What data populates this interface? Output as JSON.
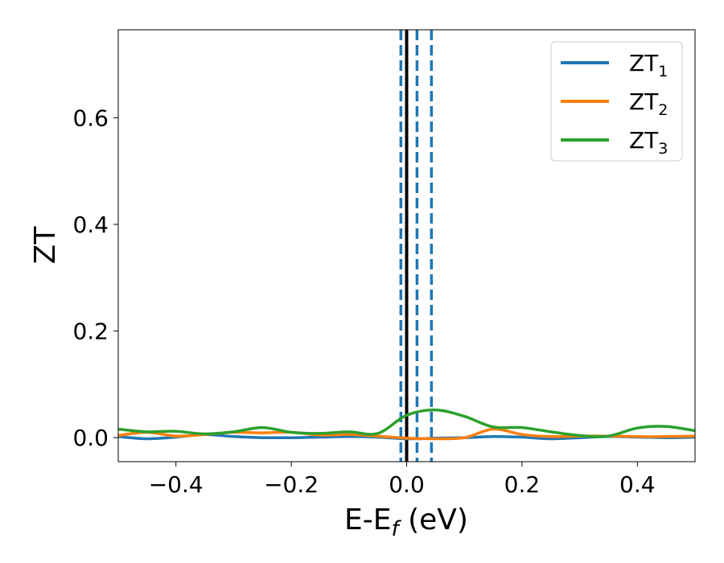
{
  "chart_data": {
    "type": "line",
    "xlabel": {
      "main": "E-E",
      "sub": "f",
      "suffix": " (eV)"
    },
    "ylabel": "ZT",
    "xlim": [
      -0.5,
      0.5
    ],
    "ylim": [
      -0.045,
      0.765
    ],
    "x_ticks": [
      -0.4,
      -0.2,
      0.0,
      0.2,
      0.4
    ],
    "x_tick_labels": [
      "−0.4",
      "−0.2",
      "0.0",
      "0.2",
      "0.4"
    ],
    "y_ticks": [
      0.0,
      0.2,
      0.4,
      0.6
    ],
    "y_tick_labels": [
      "0.0",
      "0.2",
      "0.4",
      "0.6"
    ],
    "grid": false,
    "legend_position": "top-right",
    "series": [
      {
        "name": "ZT",
        "sub": "1",
        "color": "#1f77b4",
        "points": [
          [
            -0.5,
            0.002
          ],
          [
            -0.45,
            -0.002
          ],
          [
            -0.4,
            0.001
          ],
          [
            -0.35,
            0.006
          ],
          [
            -0.3,
            0.002
          ],
          [
            -0.25,
            0.0
          ],
          [
            -0.2,
            0.0
          ],
          [
            -0.15,
            0.001
          ],
          [
            -0.1,
            0.002
          ],
          [
            -0.05,
            0.001
          ],
          [
            0.0,
            -0.002
          ],
          [
            0.05,
            -0.001
          ],
          [
            0.1,
            0.0
          ],
          [
            0.15,
            0.002
          ],
          [
            0.2,
            0.001
          ],
          [
            0.25,
            -0.002
          ],
          [
            0.3,
            0.0
          ],
          [
            0.35,
            0.002
          ],
          [
            0.4,
            0.001
          ],
          [
            0.45,
            0.0
          ],
          [
            0.5,
            0.001
          ]
        ]
      },
      {
        "name": "ZT",
        "sub": "2",
        "color": "#ff7f0e",
        "points": [
          [
            -0.5,
            0.004
          ],
          [
            -0.45,
            0.01
          ],
          [
            -0.4,
            0.003
          ],
          [
            -0.35,
            0.006
          ],
          [
            -0.3,
            0.01
          ],
          [
            -0.25,
            0.009
          ],
          [
            -0.2,
            0.01
          ],
          [
            -0.15,
            0.005
          ],
          [
            -0.1,
            0.006
          ],
          [
            -0.05,
            0.003
          ],
          [
            0.0,
            -0.001
          ],
          [
            0.05,
            -0.002
          ],
          [
            0.1,
            0.0
          ],
          [
            0.15,
            0.016
          ],
          [
            0.2,
            0.006
          ],
          [
            0.25,
            0.002
          ],
          [
            0.3,
            0.003
          ],
          [
            0.35,
            0.003
          ],
          [
            0.4,
            0.002
          ],
          [
            0.45,
            0.002
          ],
          [
            0.5,
            0.003
          ]
        ]
      },
      {
        "name": "ZT",
        "sub": "3",
        "color": "#2ca02c",
        "points": [
          [
            -0.5,
            0.016
          ],
          [
            -0.45,
            0.011
          ],
          [
            -0.4,
            0.012
          ],
          [
            -0.35,
            0.007
          ],
          [
            -0.3,
            0.011
          ],
          [
            -0.25,
            0.019
          ],
          [
            -0.2,
            0.01
          ],
          [
            -0.15,
            0.008
          ],
          [
            -0.1,
            0.011
          ],
          [
            -0.05,
            0.008
          ],
          [
            0.0,
            0.042
          ],
          [
            0.05,
            0.052
          ],
          [
            0.1,
            0.04
          ],
          [
            0.15,
            0.02
          ],
          [
            0.2,
            0.019
          ],
          [
            0.25,
            0.011
          ],
          [
            0.3,
            0.004
          ],
          [
            0.35,
            0.003
          ],
          [
            0.4,
            0.018
          ],
          [
            0.45,
            0.021
          ],
          [
            0.5,
            0.013
          ]
        ]
      }
    ],
    "vertical_lines": [
      {
        "x": -0.01,
        "style": "dashed",
        "color": "#1f77b4"
      },
      {
        "x": 0.018,
        "style": "dashed",
        "color": "#1f77b4"
      },
      {
        "x": 0.043,
        "style": "dashed",
        "color": "#1f77b4"
      },
      {
        "x": 0.0,
        "style": "solid",
        "color": "#000000"
      }
    ]
  }
}
